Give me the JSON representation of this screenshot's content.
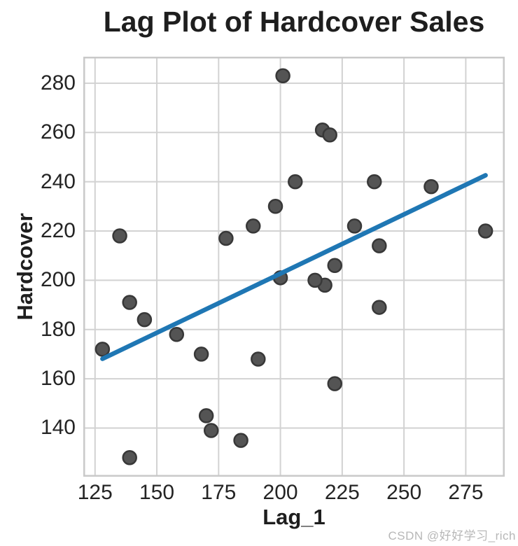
{
  "page": {
    "watermark": "CSDN @好好学习_rich"
  },
  "chart_data": {
    "type": "scatter",
    "title": "Lag Plot of Hardcover Sales",
    "xlabel": "Lag_1",
    "ylabel": "Hardcover",
    "xlim": [
      120.25,
      290.75
    ],
    "ylim": [
      120.25,
      290.75
    ],
    "x_ticks": [
      125,
      150,
      175,
      200,
      225,
      250,
      275
    ],
    "y_ticks": [
      140,
      160,
      180,
      200,
      220,
      240,
      260,
      280
    ],
    "grid": true,
    "legend": "none",
    "series": [
      {
        "name": "lag-scatter",
        "type": "scatter",
        "color": "#545454",
        "edge_color": "#383838",
        "points": [
          [
            139,
            128
          ],
          [
            128,
            172
          ],
          [
            172,
            139
          ],
          [
            139,
            191
          ],
          [
            191,
            168
          ],
          [
            168,
            170
          ],
          [
            170,
            145
          ],
          [
            145,
            184
          ],
          [
            184,
            135
          ],
          [
            135,
            218
          ],
          [
            218,
            198
          ],
          [
            198,
            230
          ],
          [
            230,
            222
          ],
          [
            222,
            206
          ],
          [
            206,
            240
          ],
          [
            240,
            189
          ],
          [
            189,
            222
          ],
          [
            222,
            158
          ],
          [
            158,
            178
          ],
          [
            178,
            217
          ],
          [
            217,
            261
          ],
          [
            261,
            238
          ],
          [
            238,
            240
          ],
          [
            240,
            214
          ],
          [
            214,
            200
          ],
          [
            200,
            201
          ],
          [
            201,
            283
          ],
          [
            283,
            220
          ],
          [
            220,
            259
          ]
        ]
      },
      {
        "name": "trend-line",
        "type": "line",
        "color": "#1f77b4",
        "x": [
          128,
          283
        ],
        "y": [
          168.1,
          242.6
        ]
      }
    ],
    "colors": {
      "grid": "#d2d2d2",
      "spine": "#c9c9c9",
      "text": "#1e1e1e",
      "background": "#ffffff"
    }
  }
}
